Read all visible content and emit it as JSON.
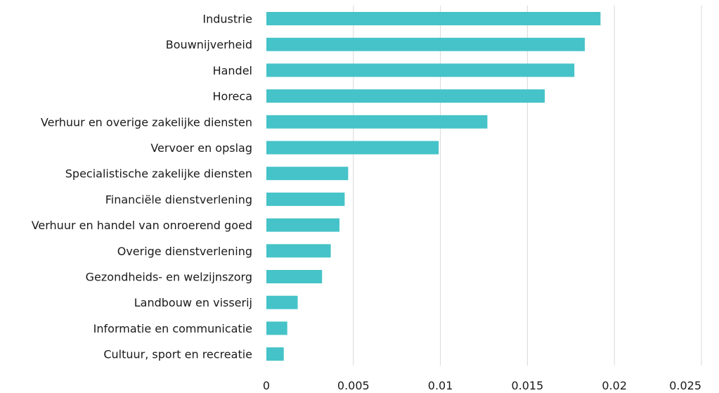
{
  "chart_data": {
    "type": "bar",
    "orientation": "horizontal",
    "categories": [
      "Industrie",
      "Bouwnijverheid",
      "Handel",
      "Horeca",
      "Verhuur en overige zakelijke diensten",
      "Vervoer en opslag",
      "Specialistische zakelijke diensten",
      "Financiële dienstverlening",
      "Verhuur en handel van onroerend goed",
      "Overige dienstverlening",
      "Gezondheids- en welzijnszorg",
      "Landbouw en visserij",
      "Informatie en communicatie",
      "Cultuur, sport en recreatie"
    ],
    "values": [
      0.0192,
      0.0183,
      0.0177,
      0.016,
      0.0127,
      0.0099,
      0.0047,
      0.0045,
      0.0042,
      0.0037,
      0.0032,
      0.0018,
      0.0012,
      0.001
    ],
    "xlim": [
      0,
      0.025
    ],
    "xticks": [
      "0",
      "0.005",
      "0.01",
      "0.015",
      "0.02",
      "0.025"
    ],
    "xtick_values": [
      0,
      0.005,
      0.01,
      0.015,
      0.02,
      0.025
    ],
    "bar_color": "#45c3c8",
    "grid": true
  }
}
